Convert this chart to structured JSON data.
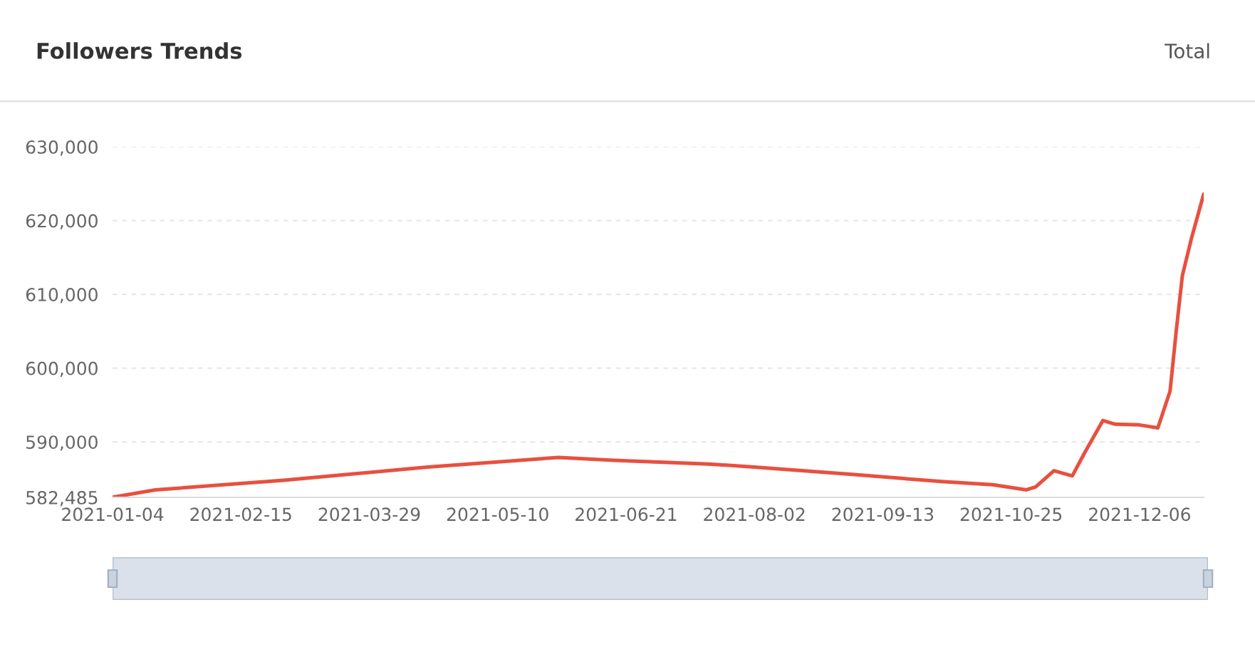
{
  "chart_data": {
    "type": "line",
    "title": "Followers Trends",
    "annotations": [
      "Total"
    ],
    "x": [
      "2021-01-04",
      "2021-01-18",
      "2021-03-01",
      "2021-04-17",
      "2021-05-30",
      "2021-06-17",
      "2021-07-18",
      "2021-08-02",
      "2021-09-03",
      "2021-10-03",
      "2021-10-19",
      "2021-10-30",
      "2021-11-02",
      "2021-11-08",
      "2021-11-14",
      "2021-11-18",
      "2021-11-24",
      "2021-11-28",
      "2021-12-06",
      "2021-12-12",
      "2021-12-16",
      "2021-12-18",
      "2021-12-20",
      "2021-12-23",
      "2021-12-27"
    ],
    "series": [
      {
        "color": "#e8503f",
        "values": [
          582500,
          583500,
          584800,
          586600,
          587900,
          587500,
          587000,
          586600,
          585600,
          584600,
          584200,
          583500,
          583900,
          586100,
          585400,
          588500,
          592900,
          592400,
          592300,
          591900,
          596900,
          605000,
          612500,
          617600,
          623600
        ]
      }
    ],
    "xlim": [
      "2021-01-04",
      "2021-12-27"
    ],
    "xticks": [
      {
        "value": "2021-01-04",
        "label": "2021-01-04"
      },
      {
        "value": "2021-02-15",
        "label": "2021-02-15"
      },
      {
        "value": "2021-03-29",
        "label": "2021-03-29"
      },
      {
        "value": "2021-05-10",
        "label": "2021-05-10"
      },
      {
        "value": "2021-06-21",
        "label": "2021-06-21"
      },
      {
        "value": "2021-08-02",
        "label": "2021-08-02"
      },
      {
        "value": "2021-09-13",
        "label": "2021-09-13"
      },
      {
        "value": "2021-10-25",
        "label": "2021-10-25"
      },
      {
        "value": "2021-12-06",
        "label": "2021-12-06"
      }
    ],
    "ylim": [
      582485,
      630000
    ],
    "yticks": [
      {
        "value": 582485,
        "label": "582,485"
      },
      {
        "value": 590000,
        "label": "590,000"
      },
      {
        "value": 600000,
        "label": "600,000"
      },
      {
        "value": 610000,
        "label": "610,000"
      },
      {
        "value": 620000,
        "label": "620,000"
      },
      {
        "value": 630000,
        "label": "630,000"
      }
    ],
    "grid": "y",
    "marker": "none",
    "line_style": "solid",
    "legend": false
  }
}
